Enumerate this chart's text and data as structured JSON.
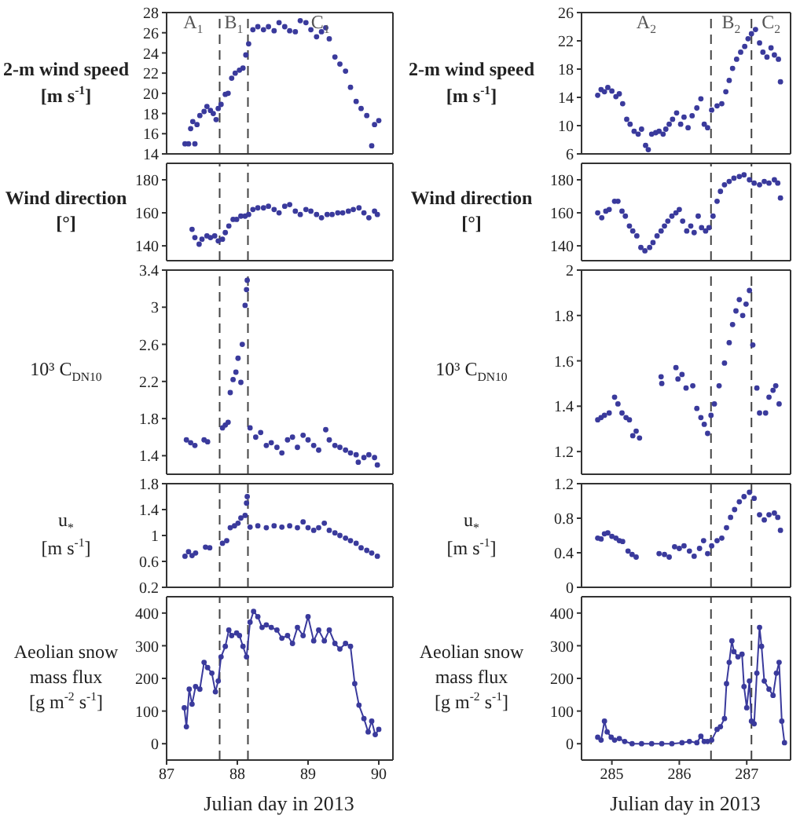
{
  "chart_data": [
    {
      "type": "scatter",
      "ylabel": "2-m wind speed\n[m s$^{-1}$]",
      "color": "#3a3a9c",
      "marker": "circle",
      "xlim": [
        87,
        90.2
      ],
      "xticks": [
        87,
        88,
        89,
        90
      ],
      "ylim": [
        14,
        28
      ],
      "yticks": [
        14,
        16,
        18,
        20,
        22,
        24,
        26,
        28
      ],
      "tick_labels": "y",
      "ref_lines": [
        {
          "axis": "x",
          "value": 87.75,
          "color": "#444444",
          "line_style": "dashed"
        },
        {
          "axis": "x",
          "value": 88.15,
          "color": "#444444",
          "line_style": "dashed"
        }
      ],
      "annotations": [
        "A$_{1}$",
        "B$_{1}$",
        "C$_{1}$"
      ],
      "x": [
        87.26,
        87.31,
        87.4,
        87.34,
        87.37,
        87.43,
        87.47,
        87.53,
        87.57,
        87.62,
        87.66,
        87.7,
        87.73,
        87.77,
        87.83,
        87.87,
        87.92,
        87.97,
        88.03,
        88.08,
        88.12,
        88.16,
        88.22,
        88.29,
        88.37,
        88.44,
        88.52,
        88.59,
        88.67,
        88.74,
        88.82,
        88.89,
        88.97,
        89.04,
        89.12,
        89.19,
        89.25,
        89.3,
        89.38,
        89.45,
        89.53,
        89.6,
        89.68,
        89.75,
        89.83,
        89.9,
        89.94,
        90.0
      ],
      "values": [
        15.0,
        15.0,
        15.0,
        16.5,
        17.2,
        16.9,
        17.8,
        18.2,
        18.7,
        18.3,
        18.0,
        17.4,
        18.5,
        18.9,
        19.9,
        20.0,
        21.5,
        22.0,
        22.3,
        22.5,
        23.8,
        24.9,
        26.3,
        26.6,
        26.3,
        26.6,
        26.2,
        27.0,
        26.6,
        26.2,
        26.1,
        27.2,
        27.0,
        26.3,
        25.6,
        26.1,
        26.5,
        25.4,
        23.6,
        22.9,
        22.2,
        20.6,
        19.2,
        18.5,
        17.8,
        14.8,
        16.9,
        17.3
      ]
    },
    {
      "type": "scatter",
      "ylabel": "2-m wind speed\n[m s$^{-1}$]",
      "color": "#3a3a9c",
      "marker": "circle",
      "xlim": [
        284.55,
        287.65
      ],
      "xticks": [
        285,
        286,
        287
      ],
      "ylim": [
        6,
        26
      ],
      "yticks": [
        6,
        10,
        14,
        18,
        22,
        26
      ],
      "tick_labels": "y",
      "ref_lines": [
        {
          "axis": "x",
          "value": 286.47,
          "color": "#444444",
          "line_style": "dashed"
        },
        {
          "axis": "x",
          "value": 287.07,
          "color": "#444444",
          "line_style": "dashed"
        }
      ],
      "annotations": [
        "A$_{2}$",
        "B$_{2}$",
        "C$_{2}$"
      ],
      "x": [
        284.79,
        284.84,
        284.89,
        284.94,
        285.0,
        285.06,
        285.11,
        285.16,
        285.22,
        285.27,
        285.33,
        285.39,
        285.44,
        285.5,
        285.54,
        285.59,
        285.65,
        285.7,
        285.76,
        285.8,
        285.85,
        285.9,
        285.96,
        286.02,
        286.07,
        286.13,
        286.19,
        286.26,
        286.32,
        286.37,
        286.42,
        286.48,
        286.56,
        286.63,
        286.69,
        286.74,
        286.79,
        286.85,
        286.91,
        286.97,
        287.02,
        287.07,
        287.13,
        287.19,
        287.24,
        287.3,
        287.36,
        287.41,
        287.47,
        287.5
      ],
      "values": [
        14.3,
        15.1,
        14.8,
        15.4,
        14.9,
        14.1,
        14.5,
        13.1,
        10.9,
        10.2,
        9.2,
        8.8,
        9.5,
        7.2,
        6.6,
        8.8,
        9.0,
        9.2,
        8.8,
        9.5,
        10.2,
        10.9,
        11.8,
        10.2,
        11.2,
        9.7,
        11.4,
        12.5,
        13.8,
        10.2,
        9.7,
        12.2,
        12.8,
        13.1,
        14.8,
        16.4,
        18.1,
        19.4,
        20.4,
        21.2,
        22.3,
        23.0,
        23.6,
        21.7,
        20.4,
        19.7,
        21.0,
        20.0,
        19.4,
        16.2
      ]
    },
    {
      "type": "scatter",
      "ylabel": "Wind direction\n[°]",
      "color": "#3a3a9c",
      "marker": "circle",
      "xlim": [
        87,
        90.2
      ],
      "xticks": [
        87,
        88,
        89,
        90
      ],
      "ylim": [
        131,
        190
      ],
      "yticks": [
        140,
        160,
        180
      ],
      "tick_labels": "y",
      "ref_lines": [
        {
          "axis": "x",
          "value": 87.75,
          "color": "#444444",
          "line_style": "dashed"
        },
        {
          "axis": "x",
          "value": 88.15,
          "color": "#444444",
          "line_style": "dashed"
        }
      ],
      "x": [
        87.36,
        87.4,
        87.46,
        87.5,
        87.57,
        87.62,
        87.68,
        87.73,
        87.79,
        87.83,
        87.88,
        87.94,
        87.99,
        88.05,
        88.11,
        88.16,
        88.22,
        88.29,
        88.37,
        88.44,
        88.52,
        88.59,
        88.67,
        88.74,
        88.82,
        88.89,
        88.97,
        89.04,
        89.12,
        89.19,
        89.27,
        89.34,
        89.42,
        89.49,
        89.57,
        89.64,
        89.72,
        89.79,
        89.86,
        89.94,
        89.98
      ],
      "values": [
        150,
        145,
        141,
        144,
        146,
        145,
        146,
        143,
        144,
        148,
        152,
        156,
        156,
        158,
        158,
        159,
        162,
        163,
        163,
        164,
        162,
        160,
        164,
        165,
        161,
        159,
        162,
        161,
        159,
        157,
        159,
        159,
        160,
        160,
        161,
        162,
        163,
        160,
        157,
        161,
        159
      ]
    },
    {
      "type": "scatter",
      "ylabel": "Wind direction\n[°]",
      "color": "#3a3a9c",
      "marker": "circle",
      "xlim": [
        284.55,
        287.65
      ],
      "xticks": [
        285,
        286,
        287
      ],
      "ylim": [
        131,
        190
      ],
      "yticks": [
        140,
        160,
        180
      ],
      "tick_labels": "y",
      "ref_lines": [
        {
          "axis": "x",
          "value": 286.47,
          "color": "#444444",
          "line_style": "dashed"
        },
        {
          "axis": "x",
          "value": 287.07,
          "color": "#444444",
          "line_style": "dashed"
        }
      ],
      "x": [
        284.79,
        284.85,
        284.91,
        284.96,
        285.04,
        285.09,
        285.15,
        285.2,
        285.26,
        285.31,
        285.37,
        285.43,
        285.49,
        285.56,
        285.61,
        285.67,
        285.73,
        285.78,
        285.83,
        285.89,
        285.95,
        286.0,
        286.05,
        286.11,
        286.17,
        286.22,
        286.28,
        286.33,
        286.39,
        286.44,
        286.5,
        286.56,
        286.61,
        286.67,
        286.74,
        286.81,
        286.89,
        286.96,
        287.04,
        287.11,
        287.19,
        287.26,
        287.33,
        287.41,
        287.46,
        287.5
      ],
      "values": [
        160,
        157,
        161,
        162,
        167,
        167,
        161,
        158,
        152,
        149,
        146,
        139,
        137,
        139,
        142,
        146,
        149,
        152,
        155,
        158,
        160,
        162,
        155,
        149,
        152,
        148,
        158,
        151,
        149,
        151,
        158,
        167,
        173,
        177,
        179,
        181,
        182,
        183,
        180,
        178,
        177,
        179,
        178,
        180,
        178,
        169
      ]
    },
    {
      "type": "scatter",
      "ylabel": "10³ C$_{DN10}$",
      "color": "#3a3a9c",
      "marker": "circle",
      "xlim": [
        87,
        90.2
      ],
      "xticks": [
        87,
        88,
        89,
        90
      ],
      "ylim": [
        1.2,
        3.4
      ],
      "yticks": [
        1.4,
        1.8,
        2.2,
        2.6,
        3,
        3.4
      ],
      "tick_labels": "y",
      "ref_lines": [
        {
          "axis": "x",
          "value": 87.75,
          "color": "#444444",
          "line_style": "dashed"
        },
        {
          "axis": "x",
          "value": 88.15,
          "color": "#444444",
          "line_style": "dashed"
        }
      ],
      "x": [
        87.28,
        87.34,
        87.4,
        87.53,
        87.58,
        87.79,
        87.83,
        87.87,
        87.9,
        87.94,
        87.98,
        88.01,
        88.05,
        88.07,
        88.11,
        88.13,
        88.14,
        88.18,
        88.26,
        88.33,
        88.41,
        88.48,
        88.56,
        88.63,
        88.71,
        88.78,
        88.85,
        88.93,
        89.0,
        89.08,
        89.15,
        89.25,
        89.3,
        89.38,
        89.45,
        89.53,
        89.6,
        89.68,
        89.71,
        89.79,
        89.86,
        89.94,
        89.98
      ],
      "values": [
        1.57,
        1.54,
        1.51,
        1.57,
        1.55,
        1.7,
        1.73,
        1.76,
        2.08,
        2.22,
        2.3,
        2.45,
        2.19,
        2.6,
        3.02,
        3.19,
        3.29,
        1.7,
        1.6,
        1.65,
        1.51,
        1.54,
        1.49,
        1.43,
        1.57,
        1.6,
        1.49,
        1.62,
        1.57,
        1.51,
        1.46,
        1.68,
        1.57,
        1.51,
        1.49,
        1.46,
        1.43,
        1.41,
        1.33,
        1.38,
        1.41,
        1.38,
        1.3
      ]
    },
    {
      "type": "scatter",
      "ylabel": "10³ C$_{DN10}$",
      "color": "#3a3a9c",
      "marker": "circle",
      "xlim": [
        284.55,
        287.65
      ],
      "xticks": [
        285,
        286,
        287
      ],
      "ylim": [
        1.1,
        2
      ],
      "yticks": [
        1.2,
        1.4,
        1.6,
        1.8,
        2
      ],
      "tick_labels": "y",
      "ref_lines": [
        {
          "axis": "x",
          "value": 286.47,
          "color": "#444444",
          "line_style": "dashed"
        },
        {
          "axis": "x",
          "value": 287.07,
          "color": "#444444",
          "line_style": "dashed"
        }
      ],
      "x": [
        284.79,
        284.84,
        284.89,
        284.96,
        285.04,
        285.09,
        285.15,
        285.21,
        285.26,
        285.31,
        285.36,
        285.41,
        285.73,
        285.74,
        285.95,
        285.98,
        286.04,
        286.1,
        286.2,
        286.26,
        286.32,
        286.37,
        286.42,
        286.47,
        286.52,
        286.59,
        286.67,
        286.74,
        286.79,
        286.84,
        286.89,
        286.94,
        286.99,
        287.04,
        287.09,
        287.15,
        287.19,
        287.28,
        287.33,
        287.39,
        287.43,
        287.48
      ],
      "values": [
        1.34,
        1.35,
        1.36,
        1.37,
        1.44,
        1.41,
        1.37,
        1.35,
        1.34,
        1.27,
        1.29,
        1.26,
        1.53,
        1.5,
        1.57,
        1.52,
        1.54,
        1.48,
        1.49,
        1.39,
        1.35,
        1.32,
        1.28,
        1.36,
        1.41,
        1.49,
        1.59,
        1.68,
        1.76,
        1.82,
        1.87,
        1.8,
        1.85,
        1.91,
        1.67,
        1.48,
        1.37,
        1.37,
        1.44,
        1.47,
        1.49,
        1.41
      ]
    },
    {
      "type": "scatter",
      "ylabel": "u$_{*}$\n[m s$^{-1}$]",
      "color": "#3a3a9c",
      "marker": "circle",
      "xlim": [
        87,
        90.2
      ],
      "xticks": [
        87,
        88,
        89,
        90
      ],
      "ylim": [
        0.2,
        1.8
      ],
      "yticks": [
        0.2,
        0.6,
        1,
        1.4,
        1.8
      ],
      "tick_labels": "y",
      "ref_lines": [
        {
          "axis": "x",
          "value": 87.75,
          "color": "#444444",
          "line_style": "dashed"
        },
        {
          "axis": "x",
          "value": 88.15,
          "color": "#444444",
          "line_style": "dashed"
        }
      ],
      "x": [
        87.26,
        87.31,
        87.36,
        87.41,
        87.55,
        87.61,
        87.79,
        87.85,
        87.9,
        87.96,
        88.01,
        88.05,
        88.11,
        88.13,
        88.14,
        88.18,
        88.29,
        88.41,
        88.52,
        88.63,
        88.74,
        88.85,
        88.93,
        89.0,
        89.08,
        89.15,
        89.23,
        89.3,
        89.38,
        89.45,
        89.53,
        89.6,
        89.68,
        89.75,
        89.83,
        89.9,
        89.98
      ],
      "values": [
        0.68,
        0.75,
        0.69,
        0.73,
        0.82,
        0.81,
        0.88,
        0.92,
        1.12,
        1.15,
        1.19,
        1.27,
        1.31,
        1.5,
        1.6,
        1.13,
        1.15,
        1.12,
        1.15,
        1.13,
        1.15,
        1.12,
        1.21,
        1.12,
        1.08,
        1.12,
        1.19,
        1.08,
        1.04,
        1.0,
        0.96,
        0.92,
        0.88,
        0.81,
        0.77,
        0.73,
        0.68
      ]
    },
    {
      "type": "scatter",
      "ylabel": "u$_{*}$\n[m s$^{-1}$]",
      "color": "#3a3a9c",
      "marker": "circle",
      "xlim": [
        284.55,
        287.65
      ],
      "xticks": [
        285,
        286,
        287
      ],
      "ylim": [
        0,
        1.2
      ],
      "yticks": [
        0,
        0.4,
        0.8,
        1.2
      ],
      "tick_labels": "y",
      "ref_lines": [
        {
          "axis": "x",
          "value": 286.47,
          "color": "#444444",
          "line_style": "dashed"
        },
        {
          "axis": "x",
          "value": 287.07,
          "color": "#444444",
          "line_style": "dashed"
        }
      ],
      "x": [
        284.79,
        284.84,
        284.89,
        284.94,
        285.0,
        285.06,
        285.11,
        285.16,
        285.24,
        285.3,
        285.36,
        285.7,
        285.78,
        285.85,
        285.93,
        286.0,
        286.07,
        286.15,
        286.22,
        286.3,
        286.36,
        286.42,
        286.48,
        286.56,
        286.63,
        286.7,
        286.76,
        286.82,
        286.89,
        286.96,
        287.04,
        287.11,
        287.19,
        287.26,
        287.33,
        287.41,
        287.46,
        287.5
      ],
      "values": [
        0.57,
        0.56,
        0.62,
        0.63,
        0.59,
        0.57,
        0.54,
        0.53,
        0.42,
        0.38,
        0.35,
        0.39,
        0.38,
        0.35,
        0.47,
        0.45,
        0.48,
        0.42,
        0.36,
        0.45,
        0.54,
        0.39,
        0.48,
        0.54,
        0.57,
        0.69,
        0.81,
        0.9,
        0.99,
        1.05,
        1.1,
        1.03,
        0.84,
        0.78,
        0.84,
        0.86,
        0.81,
        0.66
      ]
    },
    {
      "type": "line",
      "ylabel": "Aeolian snow\nmass flux\n[g m$^{-2}$ s$^{-1}$]",
      "xlabel": "Julian day in 2013",
      "color": "#3a3a9c",
      "marker": "circle",
      "line_style": "solid",
      "xlim": [
        87,
        90.2
      ],
      "xticks": [
        87,
        88,
        89,
        90
      ],
      "ylim": [
        -50,
        450
      ],
      "yticks": [
        0,
        100,
        200,
        300,
        400
      ],
      "ref_lines": [
        {
          "axis": "x",
          "value": 87.75,
          "color": "#444444",
          "line_style": "dashed"
        },
        {
          "axis": "x",
          "value": 88.15,
          "color": "#444444",
          "line_style": "dashed"
        }
      ],
      "x": [
        87.25,
        87.28,
        87.32,
        87.36,
        87.41,
        87.47,
        87.53,
        87.58,
        87.64,
        87.69,
        87.73,
        87.77,
        87.83,
        87.88,
        87.92,
        87.99,
        88.03,
        88.08,
        88.13,
        88.18,
        88.23,
        88.29,
        88.35,
        88.41,
        88.48,
        88.56,
        88.63,
        88.71,
        88.78,
        88.85,
        88.93,
        89.0,
        89.08,
        89.15,
        89.23,
        89.3,
        89.38,
        89.45,
        89.53,
        89.6,
        89.66,
        89.72,
        89.79,
        89.85,
        89.9,
        89.95,
        90.0
      ],
      "values": [
        110,
        52,
        167,
        121,
        175,
        167,
        249,
        233,
        216,
        159,
        192,
        266,
        298,
        348,
        331,
        339,
        331,
        298,
        266,
        372,
        405,
        389,
        356,
        364,
        356,
        348,
        323,
        331,
        307,
        356,
        331,
        389,
        315,
        348,
        315,
        348,
        307,
        290,
        307,
        298,
        184,
        118,
        77,
        36,
        69,
        28,
        44
      ]
    },
    {
      "type": "line",
      "ylabel": "Aeolian snow\nmass flux\n[g m$^{-2}$ s$^{-1}$]",
      "xlabel": "Julian day in 2013",
      "color": "#3a3a9c",
      "marker": "circle",
      "line_style": "solid",
      "xlim": [
        284.55,
        287.65
      ],
      "xticks": [
        285,
        286,
        287
      ],
      "ylim": [
        -50,
        450
      ],
      "yticks": [
        0,
        100,
        200,
        300,
        400
      ],
      "ref_lines": [
        {
          "axis": "x",
          "value": 286.47,
          "color": "#444444",
          "line_style": "dashed"
        },
        {
          "axis": "x",
          "value": 287.07,
          "color": "#444444",
          "line_style": "dashed"
        }
      ],
      "x": [
        284.79,
        284.84,
        284.89,
        284.93,
        284.99,
        285.04,
        285.11,
        285.19,
        285.3,
        285.44,
        285.59,
        285.74,
        285.89,
        286.04,
        286.15,
        286.26,
        286.32,
        286.37,
        286.42,
        286.48,
        286.56,
        286.61,
        286.67,
        286.7,
        286.74,
        286.78,
        286.81,
        286.87,
        286.93,
        286.96,
        287.0,
        287.04,
        287.07,
        287.11,
        287.15,
        287.19,
        287.22,
        287.26,
        287.33,
        287.39,
        287.44,
        287.48,
        287.52,
        287.56
      ],
      "values": [
        20,
        11,
        69,
        36,
        20,
        11,
        16,
        7,
        0,
        0,
        0,
        0,
        0,
        3,
        7,
        3,
        23,
        7,
        7,
        11,
        44,
        52,
        77,
        184,
        249,
        315,
        282,
        266,
        274,
        175,
        110,
        192,
        69,
        61,
        216,
        356,
        298,
        192,
        167,
        148,
        216,
        249,
        69,
        3
      ]
    }
  ]
}
